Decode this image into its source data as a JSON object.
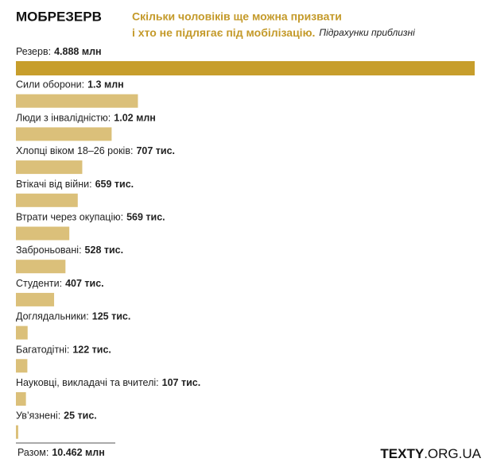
{
  "chart_data": {
    "type": "bar",
    "orientation": "horizontal",
    "title": "МОБРЕЗЕРВ",
    "subtitle": [
      "Скільки чоловіків ще можна призвати",
      "і хто не підлягає під мобілізацію."
    ],
    "note": "Підрахунки приблизні",
    "categories": [
      "Резерв:",
      "Сили оборони:",
      "Люди з інвалідністю:",
      "Хлопці віком 18–26 років:",
      "Втікачі від війни:",
      "Втрати через окупацію:",
      "Заброньовані:",
      "Студенти:",
      "Доглядальники:",
      "Багатодітні:",
      "Науковці, викладачі та вчителі:",
      "Ув’язнені:"
    ],
    "values": [
      4888,
      1300,
      1020,
      707,
      659,
      569,
      528,
      407,
      125,
      122,
      107,
      25
    ],
    "value_labels": [
      "4.888 млн",
      "1.3 млн",
      "1.02 млн",
      "707 тис.",
      "659 тис.",
      "569 тис.",
      "528 тис.",
      "407 тис.",
      "125 тис.",
      "122 тис.",
      "107 тис.",
      "25 тис."
    ],
    "colors": [
      "#c79e2c",
      "#dbc07a",
      "#dbc07a",
      "#dbc07a",
      "#dbc07a",
      "#dbc07a",
      "#dbc07a",
      "#dbc07a",
      "#dbc07a",
      "#dbc07a",
      "#dbc07a",
      "#dbc07a"
    ],
    "xlim": [
      0,
      4888
    ],
    "total_label": "Разом:",
    "total": "10.462 млн",
    "source": [
      "TEXTY",
      ".ORG.UA"
    ]
  }
}
